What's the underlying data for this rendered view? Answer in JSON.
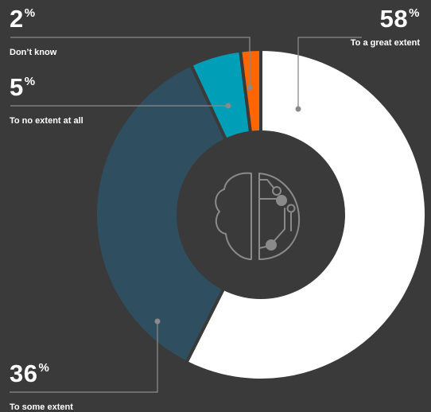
{
  "chart_data": {
    "type": "pie",
    "variant": "donut",
    "start": "12 o'clock",
    "direction": "clockwise",
    "slices": [
      {
        "label": "To a great extent",
        "value": 58,
        "color": "#ffffff"
      },
      {
        "label": "To some extent",
        "value": 36,
        "color": "#2f4f60"
      },
      {
        "label": "To no extent at all",
        "value": 5,
        "color": "#009fb7"
      },
      {
        "label": "Don’t know",
        "value": 2,
        "color": "#ff6600"
      }
    ],
    "center_icon": "brain-circuit-icon"
  },
  "labels": [
    {
      "pct_number": "58",
      "pct_sign": "%",
      "caption": "To a great extent"
    },
    {
      "pct_number": "36",
      "pct_sign": "%",
      "caption": "To some extent"
    },
    {
      "pct_number": "5",
      "pct_sign": "%",
      "caption": "To no extent at all"
    },
    {
      "pct_number": "2",
      "pct_sign": "%",
      "caption": "Don’t know"
    }
  ],
  "colors": {
    "background": "#3a3a3a",
    "leader_line": "#8a8a8a",
    "icon_stroke": "#8a8a8a"
  }
}
